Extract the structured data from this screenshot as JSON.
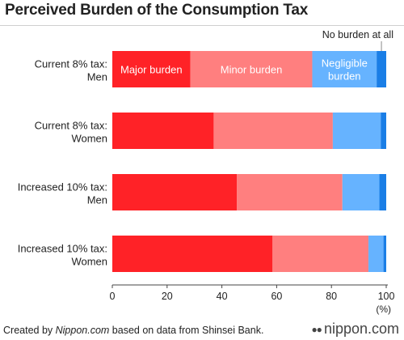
{
  "title": "Perceived Burden of the Consumption Tax",
  "footer": {
    "prefix": "Created by ",
    "source_name": "Nippon.com",
    "suffix": " based on data from Shinsei Bank."
  },
  "brand": {
    "icon": "nippon-logo-icon",
    "text": "nippon.com"
  },
  "colors": {
    "major": "#ff2227",
    "minor": "#ff7f7f",
    "negligible": "#66b3ff",
    "none": "#1a7ee6",
    "axis": "#444444",
    "gridline": "#bbbbbb"
  },
  "chart_data": {
    "type": "bar",
    "orientation": "horizontal",
    "stacked": true,
    "title": "Perceived Burden of the Consumption Tax",
    "xlabel": "(%)",
    "xlim": [
      0,
      100
    ],
    "xticks": [
      0,
      20,
      40,
      60,
      80,
      100
    ],
    "categories": [
      [
        "Current 8% tax:",
        "Men"
      ],
      [
        "Current 8% tax:",
        "Women"
      ],
      [
        "Increased 10% tax:",
        "Men"
      ],
      [
        "Increased 10% tax:",
        "Women"
      ]
    ],
    "series": [
      {
        "name": "Major burden",
        "color_key": "major",
        "label_color": "#ffffff",
        "values": [
          28.5,
          37,
          45.5,
          58.5
        ]
      },
      {
        "name": "Minor burden",
        "color_key": "minor",
        "label_color": "#ffffff",
        "values": [
          44.5,
          43.5,
          38.5,
          35
        ]
      },
      {
        "name": "Negligible burden",
        "color_key": "negligible",
        "label_color": "#ffffff",
        "values": [
          23.5,
          17.5,
          13.5,
          5.5
        ]
      },
      {
        "name": "No burden at all",
        "color_key": "none",
        "label_color": "#222222",
        "values": [
          3.5,
          2,
          2.5,
          1
        ]
      }
    ]
  }
}
